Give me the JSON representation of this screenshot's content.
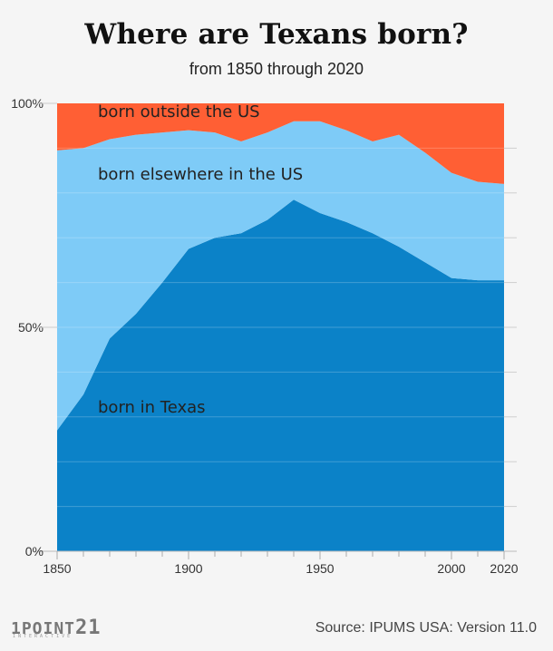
{
  "header": {
    "title": "Where are Texans born?",
    "subtitle": "from 1850 through 2020"
  },
  "footer": {
    "source": "Source: IPUMS USA: Version 11.0",
    "logo_text": "1POINT",
    "logo_number": "21",
    "logo_sub": "INTERACTIVE"
  },
  "chart_data": {
    "type": "area",
    "stacked": true,
    "normalized": true,
    "x": [
      1850,
      1860,
      1870,
      1880,
      1890,
      1900,
      1910,
      1920,
      1930,
      1940,
      1950,
      1960,
      1970,
      1980,
      1990,
      2000,
      2010,
      2020
    ],
    "series": [
      {
        "name": "born in Texas",
        "color": "#0b82c8",
        "values": [
          27,
          35,
          47.5,
          53,
          60,
          67.5,
          70,
          71,
          74,
          78.5,
          75.5,
          73.5,
          71,
          68,
          64.5,
          61,
          60.5,
          60.5
        ]
      },
      {
        "name": "born elsewhere in the US",
        "color": "#7ecbf7",
        "values": [
          62.5,
          55,
          44.5,
          40,
          33.5,
          26.5,
          23.5,
          20.5,
          19.5,
          17.5,
          20.5,
          20.5,
          20.5,
          25,
          24.5,
          23.5,
          22,
          21.5
        ]
      },
      {
        "name": "born outside the US",
        "color": "#ff5f34",
        "values": [
          10.5,
          10,
          8,
          7,
          6.5,
          6,
          6.5,
          8.5,
          6.5,
          4,
          4,
          6,
          8.5,
          7,
          11,
          15.5,
          17.5,
          18
        ]
      }
    ],
    "x_ticks": [
      1850,
      1900,
      1950,
      2000,
      2020
    ],
    "x_tick_labels": [
      "1850",
      "1900",
      "1950",
      "2000",
      "2020"
    ],
    "y_ticks": [
      0,
      50,
      100
    ],
    "y_tick_labels": [
      "0%",
      "50%",
      "100%"
    ],
    "ylim": [
      0,
      100
    ],
    "xlim": [
      1850,
      2020
    ],
    "grid": true,
    "minor_tick_step": 10
  }
}
